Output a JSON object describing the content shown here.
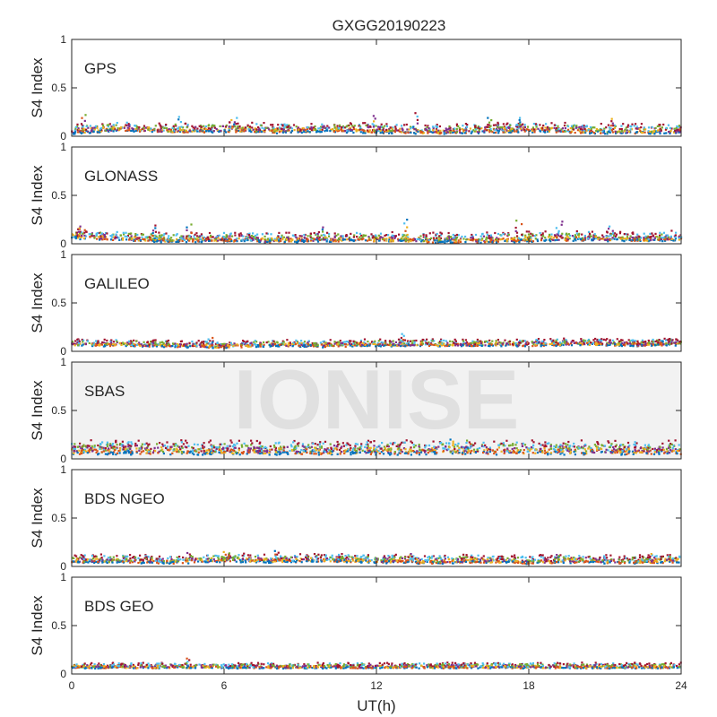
{
  "chart_data": {
    "type": "scatter",
    "title": "GXGG20190223",
    "xlabel": "UT(h)",
    "ylabel": "S4 Index",
    "xlim": [
      0,
      24
    ],
    "xticks": [
      0,
      6,
      12,
      18,
      24
    ],
    "xtick_labels": [
      "0",
      "6",
      "12",
      "18",
      "24"
    ],
    "ylim": [
      0,
      1
    ],
    "yticks": [
      0,
      0.5,
      1
    ],
    "ytick_labels": [
      "0",
      "0.5",
      "1"
    ],
    "grid": false,
    "watermark": "IONISE",
    "series_colors": [
      "#0072BD",
      "#D95319",
      "#EDB120",
      "#7E2F8E",
      "#77AC30",
      "#4DBEEE",
      "#A2142F"
    ],
    "panels": [
      {
        "label": "GPS",
        "baseline": [
          0.06,
          0.09,
          0.07,
          0.08,
          0.07,
          0.08,
          0.07,
          0.06,
          0.07,
          0.08,
          0.07,
          0.06,
          0.07
        ],
        "spread": 0.035,
        "peaks": [
          [
            0.5,
            0.22
          ],
          [
            4.2,
            0.2
          ],
          [
            6.4,
            0.19
          ],
          [
            11.9,
            0.21
          ],
          [
            13.5,
            0.24
          ],
          [
            16.4,
            0.19
          ],
          [
            17.7,
            0.19
          ],
          [
            21.3,
            0.18
          ]
        ]
      },
      {
        "label": "GLONASS",
        "baseline": [
          0.09,
          0.07,
          0.05,
          0.06,
          0.05,
          0.06,
          0.06,
          0.05,
          0.05,
          0.06,
          0.07,
          0.06,
          0.07
        ],
        "spread": 0.035,
        "peaks": [
          [
            0.4,
            0.18
          ],
          [
            3.3,
            0.19
          ],
          [
            4.6,
            0.2
          ],
          [
            9.8,
            0.17
          ],
          [
            13.2,
            0.25
          ],
          [
            17.6,
            0.24
          ],
          [
            19.2,
            0.23
          ],
          [
            21.2,
            0.18
          ]
        ]
      },
      {
        "label": "GALILEO",
        "baseline": [
          0.08,
          0.08,
          0.07,
          0.06,
          0.08,
          0.07,
          0.08,
          0.08,
          0.08,
          0.08,
          0.09,
          0.08,
          0.09
        ],
        "spread": 0.025,
        "peaks": [
          [
            5.5,
            0.14
          ],
          [
            13.1,
            0.18
          ],
          [
            18.4,
            0.12
          ],
          [
            23.2,
            0.12
          ]
        ]
      },
      {
        "label": "SBAS",
        "baseline": [
          0.1,
          0.1,
          0.1,
          0.1,
          0.1,
          0.1,
          0.1,
          0.1,
          0.1,
          0.1,
          0.1,
          0.1,
          0.1
        ],
        "spread": 0.05,
        "peaks": [
          [
            14.9,
            0.2
          ],
          [
            15.6,
            0.19
          ]
        ]
      },
      {
        "label": "BDS NGEO",
        "baseline": [
          0.07,
          0.07,
          0.06,
          0.08,
          0.07,
          0.08,
          0.07,
          0.06,
          0.07,
          0.06,
          0.07,
          0.06,
          0.07
        ],
        "spread": 0.03,
        "peaks": [
          [
            4.6,
            0.14
          ],
          [
            6.1,
            0.15
          ],
          [
            8.1,
            0.16
          ],
          [
            13.4,
            0.13
          ],
          [
            19.1,
            0.12
          ],
          [
            22.9,
            0.13
          ]
        ]
      },
      {
        "label": "BDS GEO",
        "baseline": [
          0.08,
          0.08,
          0.08,
          0.08,
          0.08,
          0.08,
          0.08,
          0.08,
          0.08,
          0.08,
          0.08,
          0.08,
          0.08
        ],
        "spread": 0.02,
        "peaks": [
          [
            4.6,
            0.16
          ]
        ]
      }
    ]
  }
}
